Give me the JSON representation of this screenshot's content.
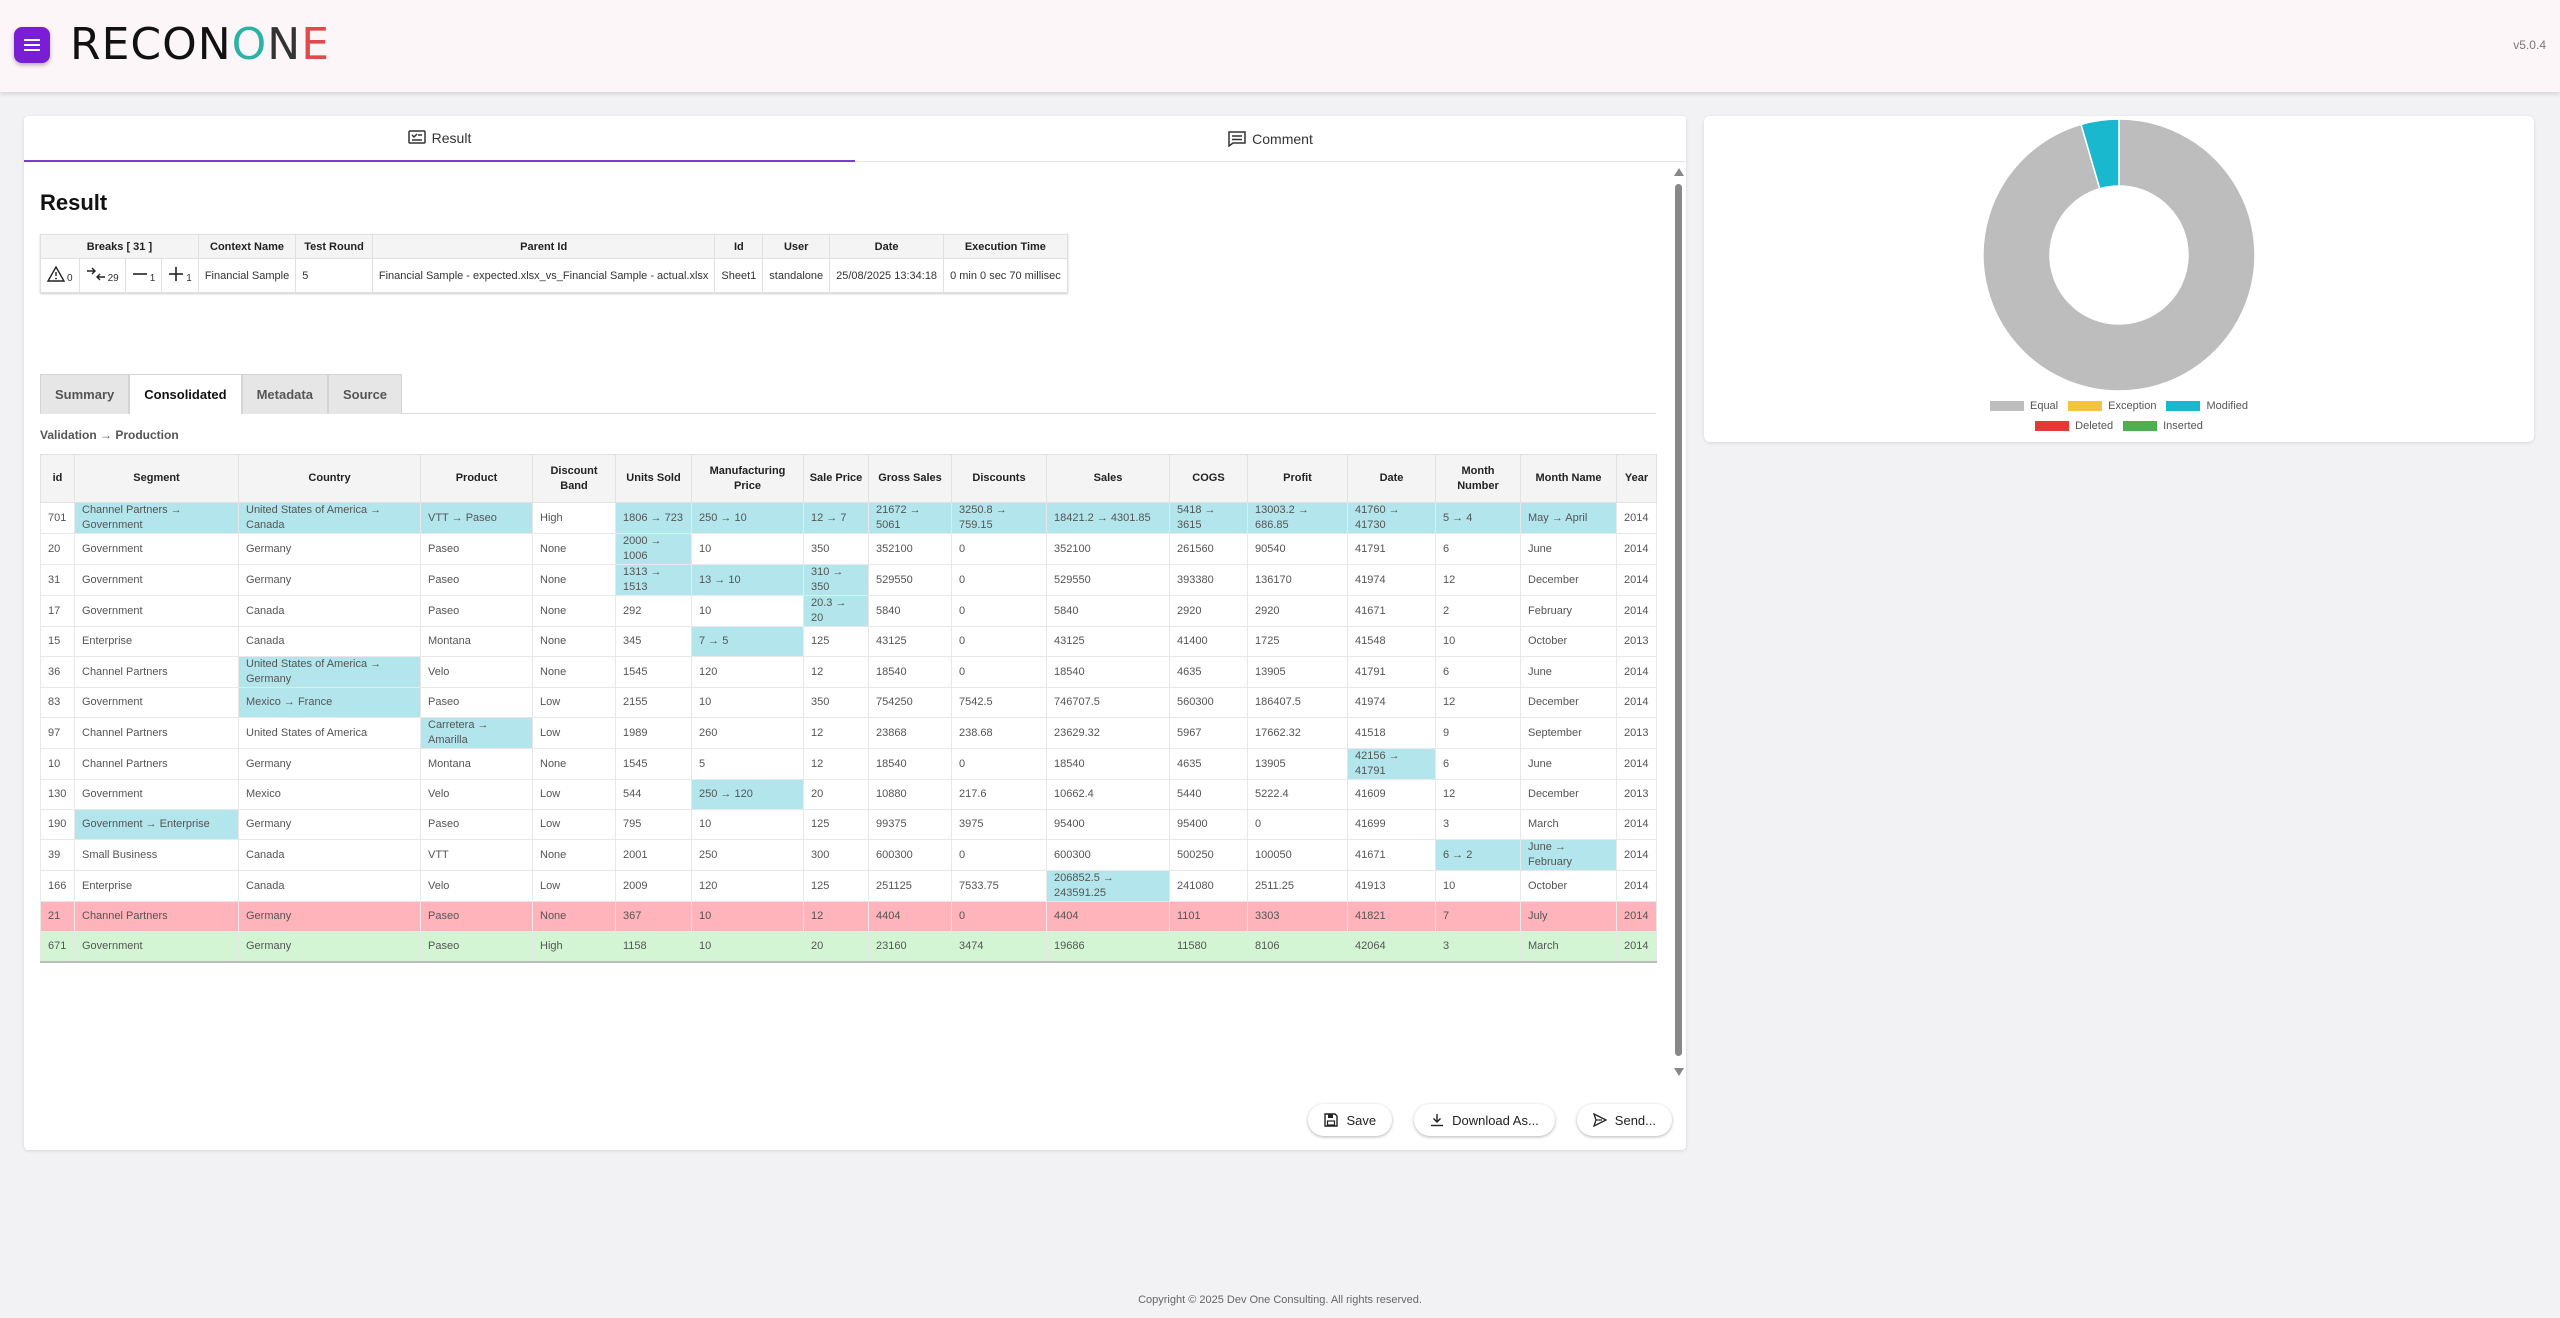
{
  "header": {
    "logo_parts": [
      "RECON",
      "O",
      "N",
      "E"
    ],
    "logo_colors": [
      "#111111",
      "#2bb3a8",
      "#333333",
      "#e04a4a"
    ],
    "version": "v5.0.4"
  },
  "tabs": [
    {
      "label": "Result",
      "icon": "result-icon"
    },
    {
      "label": "Comment",
      "icon": "comment-icon"
    }
  ],
  "result": {
    "title": "Result",
    "info_headers": [
      "Breaks [ 31 ]",
      "Context Name",
      "Test Round",
      "Parent Id",
      "Id",
      "User",
      "Date",
      "Execution Time"
    ],
    "breaks": {
      "exception": "0",
      "modified": "29",
      "deleted": "1",
      "inserted": "1"
    },
    "info_row": {
      "context_name": "Financial Sample",
      "test_round": "5",
      "parent_id": "Financial Sample - expected.xlsx_vs_Financial Sample - actual.xlsx",
      "id": "Sheet1",
      "user": "standalone",
      "date": "25/08/2025 13:34:18",
      "execution_time": "0 min 0 sec 70 millisec"
    }
  },
  "sub_tabs": [
    "Summary",
    "Consolidated",
    "Metadata",
    "Source"
  ],
  "breadcrumb": "Validation → Production",
  "table": {
    "headers": [
      "id",
      "Segment",
      "Country",
      "Product",
      "Discount Band",
      "Units Sold",
      "Manufacturing Price",
      "Sale Price",
      "Gross Sales",
      "Discounts",
      "Sales",
      "COGS",
      "Profit",
      "Date",
      "Month Number",
      "Month Name",
      "Year"
    ],
    "rows": [
      {
        "status": "modified",
        "changed": [
          1,
          2,
          3,
          5,
          6,
          7,
          8,
          9,
          10,
          11,
          12,
          13,
          14,
          15
        ],
        "cells": [
          "701",
          "Channel Partners → Government",
          "United States of America → Canada",
          "VTT → Paseo",
          "High",
          "1806 → 723",
          "250 → 10",
          "12 → 7",
          "21672 → 5061",
          "3250.8 → 759.15",
          "18421.2 → 4301.85",
          "5418 → 3615",
          "13003.2 → 686.85",
          "41760 → 41730",
          "5 → 4",
          "May → April",
          "2014"
        ]
      },
      {
        "status": "modified",
        "changed": [
          5
        ],
        "cells": [
          "20",
          "Government",
          "Germany",
          "Paseo",
          "None",
          "2000 → 1006",
          "10",
          "350",
          "352100",
          "0",
          "352100",
          "261560",
          "90540",
          "41791",
          "6",
          "June",
          "2014"
        ]
      },
      {
        "status": "modified",
        "changed": [
          5,
          6,
          7
        ],
        "cells": [
          "31",
          "Government",
          "Germany",
          "Paseo",
          "None",
          "1313 → 1513",
          "13 → 10",
          "310 → 350",
          "529550",
          "0",
          "529550",
          "393380",
          "136170",
          "41974",
          "12",
          "December",
          "2014"
        ]
      },
      {
        "status": "modified",
        "changed": [
          7
        ],
        "cells": [
          "17",
          "Government",
          "Canada",
          "Paseo",
          "None",
          "292",
          "10",
          "20.3 → 20",
          "5840",
          "0",
          "5840",
          "2920",
          "2920",
          "41671",
          "2",
          "February",
          "2014"
        ]
      },
      {
        "status": "modified",
        "changed": [
          6
        ],
        "cells": [
          "15",
          "Enterprise",
          "Canada",
          "Montana",
          "None",
          "345",
          "7 → 5",
          "125",
          "43125",
          "0",
          "43125",
          "41400",
          "1725",
          "41548",
          "10",
          "October",
          "2013"
        ]
      },
      {
        "status": "modified",
        "changed": [
          2
        ],
        "cells": [
          "36",
          "Channel Partners",
          "United States of America → Germany",
          "Velo",
          "None",
          "1545",
          "120",
          "12",
          "18540",
          "0",
          "18540",
          "4635",
          "13905",
          "41791",
          "6",
          "June",
          "2014"
        ]
      },
      {
        "status": "modified",
        "changed": [
          2
        ],
        "cells": [
          "83",
          "Government",
          "Mexico → France",
          "Paseo",
          "Low",
          "2155",
          "10",
          "350",
          "754250",
          "7542.5",
          "746707.5",
          "560300",
          "186407.5",
          "41974",
          "12",
          "December",
          "2014"
        ]
      },
      {
        "status": "modified",
        "changed": [
          3
        ],
        "cells": [
          "97",
          "Channel Partners",
          "United States of America",
          "Carretera → Amarilla",
          "Low",
          "1989",
          "260",
          "12",
          "23868",
          "238.68",
          "23629.32",
          "5967",
          "17662.32",
          "41518",
          "9",
          "September",
          "2013"
        ]
      },
      {
        "status": "modified",
        "changed": [
          13
        ],
        "cells": [
          "10",
          "Channel Partners",
          "Germany",
          "Montana",
          "None",
          "1545",
          "5",
          "12",
          "18540",
          "0",
          "18540",
          "4635",
          "13905",
          "42156 → 41791",
          "6",
          "June",
          "2014"
        ]
      },
      {
        "status": "modified",
        "changed": [
          6
        ],
        "cells": [
          "130",
          "Government",
          "Mexico",
          "Velo",
          "Low",
          "544",
          "250 → 120",
          "20",
          "10880",
          "217.6",
          "10662.4",
          "5440",
          "5222.4",
          "41609",
          "12",
          "December",
          "2013"
        ]
      },
      {
        "status": "modified",
        "changed": [
          1
        ],
        "cells": [
          "190",
          "Government → Enterprise",
          "Germany",
          "Paseo",
          "Low",
          "795",
          "10",
          "125",
          "99375",
          "3975",
          "95400",
          "95400",
          "0",
          "41699",
          "3",
          "March",
          "2014"
        ]
      },
      {
        "status": "modified",
        "changed": [
          14,
          15
        ],
        "cells": [
          "39",
          "Small Business",
          "Canada",
          "VTT",
          "None",
          "2001",
          "250",
          "300",
          "600300",
          "0",
          "600300",
          "500250",
          "100050",
          "41671",
          "6 → 2",
          "June → February",
          "2014"
        ]
      },
      {
        "status": "modified",
        "changed": [
          10
        ],
        "cells": [
          "166",
          "Enterprise",
          "Canada",
          "Velo",
          "Low",
          "2009",
          "120",
          "125",
          "251125",
          "7533.75",
          "206852.5 → 243591.25",
          "241080",
          "2511.25",
          "41913",
          "10",
          "October",
          "2014"
        ]
      },
      {
        "status": "deleted",
        "changed": [],
        "cells": [
          "21",
          "Channel Partners",
          "Germany",
          "Paseo",
          "None",
          "367",
          "10",
          "12",
          "4404",
          "0",
          "4404",
          "1101",
          "3303",
          "41821",
          "7",
          "July",
          "2014"
        ]
      },
      {
        "status": "inserted",
        "changed": [],
        "cells": [
          "671",
          "Government",
          "Germany",
          "Paseo",
          "High",
          "1158",
          "10",
          "20",
          "23160",
          "3474",
          "19686",
          "11580",
          "8106",
          "42064",
          "3",
          "March",
          "2014"
        ]
      }
    ]
  },
  "actions": [
    {
      "label": "Save",
      "icon": "save-icon"
    },
    {
      "label": "Download As...",
      "icon": "download-icon"
    },
    {
      "label": "Send...",
      "icon": "send-icon"
    }
  ],
  "chart_data": {
    "type": "pie",
    "donut": true,
    "categories": [
      "Equal",
      "Exception",
      "Modified",
      "Deleted",
      "Inserted"
    ],
    "values": [
      95.5,
      0,
      4.5,
      0,
      0
    ],
    "colors": [
      "#bdbdbd",
      "#f5c342",
      "#1ab8cf",
      "#e53935",
      "#4caf50"
    ],
    "legend": "bottom"
  },
  "footer": "Copyright © 2025 Dev One Consulting. All rights reserved."
}
